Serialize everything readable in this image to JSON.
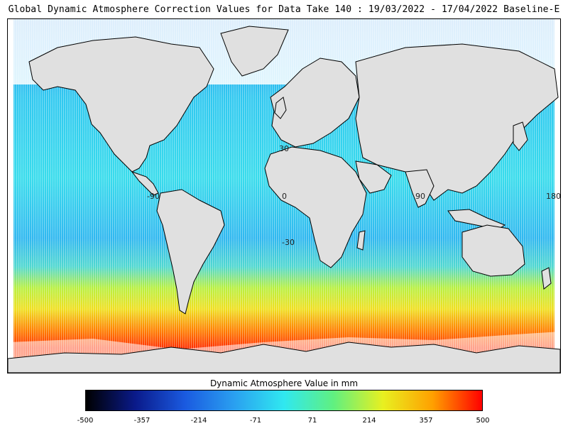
{
  "title": "Global Dynamic Atmosphere Correction Values for Data Take 140 : 19/03/2022 - 17/04/2022 Baseline-E",
  "map": {
    "lon_labels": [
      "-90",
      "0",
      "90",
      "180"
    ],
    "lat_labels": [
      "30",
      "-30"
    ]
  },
  "colorbar": {
    "title": "Dynamic Atmosphere Value in mm",
    "ticks": [
      "-500",
      "-357",
      "-214",
      "-71",
      "71",
      "214",
      "357",
      "500"
    ],
    "colors": [
      "#000000",
      "#0a1a8a",
      "#1a5ae0",
      "#2aa0f0",
      "#30e8f0",
      "#60f080",
      "#e8f020",
      "#ffa000",
      "#ff0000"
    ],
    "land_color": "#e0e0e0",
    "ocean_fill": "#33d6ea"
  }
}
